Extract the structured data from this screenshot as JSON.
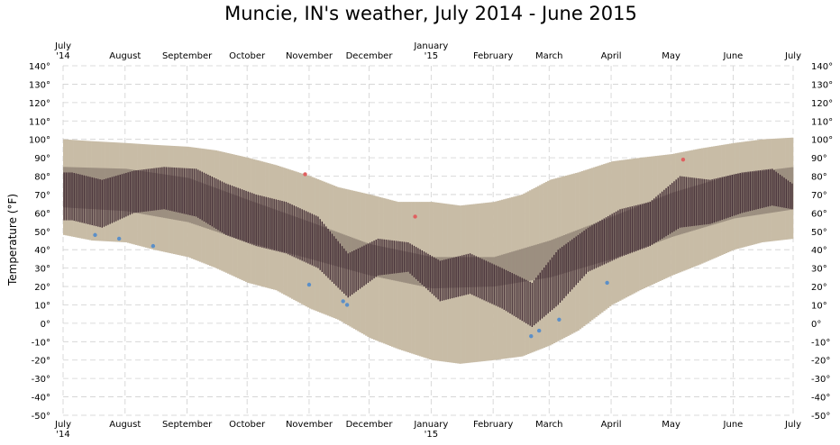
{
  "chart_data": {
    "type": "bar",
    "title": "Muncie, IN's weather, July 2014 - June 2015",
    "ylabel": "Temperature (°F)",
    "ylim": [
      -50,
      140
    ],
    "yticks": [
      -50,
      -40,
      -30,
      -20,
      -10,
      0,
      10,
      20,
      30,
      40,
      50,
      60,
      70,
      80,
      90,
      100,
      110,
      120,
      130,
      140
    ],
    "ytick_suffix": "°",
    "grid": true,
    "x_start": "2014-07-01",
    "x_end": "2015-07-01",
    "month_ticks": [
      {
        "date": "2014-07-01",
        "label": "July",
        "sublabel": "'14"
      },
      {
        "date": "2014-08-01",
        "label": "August",
        "sublabel": ""
      },
      {
        "date": "2014-09-01",
        "label": "September",
        "sublabel": ""
      },
      {
        "date": "2014-10-01",
        "label": "October",
        "sublabel": ""
      },
      {
        "date": "2014-11-01",
        "label": "November",
        "sublabel": ""
      },
      {
        "date": "2014-12-01",
        "label": "December",
        "sublabel": ""
      },
      {
        "date": "2015-01-01",
        "label": "January",
        "sublabel": "'15"
      },
      {
        "date": "2015-02-01",
        "label": "February",
        "sublabel": ""
      },
      {
        "date": "2015-03-01",
        "label": "March",
        "sublabel": ""
      },
      {
        "date": "2015-04-01",
        "label": "April",
        "sublabel": ""
      },
      {
        "date": "2015-05-01",
        "label": "May",
        "sublabel": ""
      },
      {
        "date": "2015-06-01",
        "label": "June",
        "sublabel": ""
      },
      {
        "date": "2015-07-01",
        "label": "July",
        "sublabel": ""
      }
    ],
    "series": [
      {
        "role": "record",
        "color": "#c8bca6",
        "points": [
          {
            "date": "2014-07-01",
            "low": 48,
            "high": 100
          },
          {
            "date": "2014-07-15",
            "low": 45,
            "high": 99
          },
          {
            "date": "2014-08-01",
            "low": 44,
            "high": 98
          },
          {
            "date": "2014-08-15",
            "low": 40,
            "high": 97
          },
          {
            "date": "2014-09-01",
            "low": 36,
            "high": 96
          },
          {
            "date": "2014-09-15",
            "low": 30,
            "high": 94
          },
          {
            "date": "2014-10-01",
            "low": 22,
            "high": 90
          },
          {
            "date": "2014-10-15",
            "low": 18,
            "high": 86
          },
          {
            "date": "2014-11-01",
            "low": 8,
            "high": 80
          },
          {
            "date": "2014-11-15",
            "low": 2,
            "high": 74
          },
          {
            "date": "2014-12-01",
            "low": -8,
            "high": 70
          },
          {
            "date": "2014-12-15",
            "low": -14,
            "high": 66
          },
          {
            "date": "2015-01-01",
            "low": -20,
            "high": 66
          },
          {
            "date": "2015-01-15",
            "low": -22,
            "high": 64
          },
          {
            "date": "2015-02-01",
            "low": -20,
            "high": 66
          },
          {
            "date": "2015-02-15",
            "low": -18,
            "high": 70
          },
          {
            "date": "2015-03-01",
            "low": -12,
            "high": 78
          },
          {
            "date": "2015-03-15",
            "low": -4,
            "high": 82
          },
          {
            "date": "2015-04-01",
            "low": 10,
            "high": 88
          },
          {
            "date": "2015-04-15",
            "low": 18,
            "high": 90
          },
          {
            "date": "2015-05-01",
            "low": 26,
            "high": 92
          },
          {
            "date": "2015-05-15",
            "low": 32,
            "high": 95
          },
          {
            "date": "2015-06-01",
            "low": 40,
            "high": 98
          },
          {
            "date": "2015-06-15",
            "low": 44,
            "high": 100
          },
          {
            "date": "2015-07-01",
            "low": 46,
            "high": 101
          }
        ]
      },
      {
        "role": "normal",
        "color": "#9c8f80",
        "points": [
          {
            "date": "2014-07-01",
            "low": 63,
            "high": 85
          },
          {
            "date": "2014-08-01",
            "low": 61,
            "high": 84
          },
          {
            "date": "2014-09-01",
            "low": 55,
            "high": 79
          },
          {
            "date": "2014-10-01",
            "low": 44,
            "high": 67
          },
          {
            "date": "2014-11-01",
            "low": 35,
            "high": 55
          },
          {
            "date": "2014-12-01",
            "low": 26,
            "high": 43
          },
          {
            "date": "2015-01-01",
            "low": 19,
            "high": 36
          },
          {
            "date": "2015-02-01",
            "low": 20,
            "high": 36
          },
          {
            "date": "2015-03-01",
            "low": 25,
            "high": 45
          },
          {
            "date": "2015-04-01",
            "low": 35,
            "high": 58
          },
          {
            "date": "2015-05-01",
            "low": 47,
            "high": 71
          },
          {
            "date": "2015-06-01",
            "low": 57,
            "high": 81
          },
          {
            "date": "2015-07-01",
            "low": 62,
            "high": 85
          }
        ]
      },
      {
        "role": "actual",
        "color": "#3d2630",
        "points": [
          {
            "date": "2014-07-05",
            "low": 56,
            "high": 82
          },
          {
            "date": "2014-07-20",
            "low": 52,
            "high": 78
          },
          {
            "date": "2014-08-05",
            "low": 60,
            "high": 83
          },
          {
            "date": "2014-08-20",
            "low": 62,
            "high": 85
          },
          {
            "date": "2014-09-05",
            "low": 58,
            "high": 84
          },
          {
            "date": "2014-09-20",
            "low": 48,
            "high": 76
          },
          {
            "date": "2014-10-05",
            "low": 42,
            "high": 70
          },
          {
            "date": "2014-10-20",
            "low": 38,
            "high": 66
          },
          {
            "date": "2014-11-05",
            "low": 30,
            "high": 58
          },
          {
            "date": "2014-11-20",
            "low": 14,
            "high": 38
          },
          {
            "date": "2014-12-05",
            "low": 26,
            "high": 46
          },
          {
            "date": "2014-12-20",
            "low": 28,
            "high": 44
          },
          {
            "date": "2015-01-05",
            "low": 12,
            "high": 34
          },
          {
            "date": "2015-01-20",
            "low": 16,
            "high": 38
          },
          {
            "date": "2015-02-05",
            "low": 8,
            "high": 30
          },
          {
            "date": "2015-02-20",
            "low": -2,
            "high": 22
          },
          {
            "date": "2015-03-05",
            "low": 10,
            "high": 40
          },
          {
            "date": "2015-03-20",
            "low": 28,
            "high": 52
          },
          {
            "date": "2015-04-05",
            "low": 36,
            "high": 62
          },
          {
            "date": "2015-04-20",
            "low": 42,
            "high": 66
          },
          {
            "date": "2015-05-05",
            "low": 52,
            "high": 80
          },
          {
            "date": "2015-05-20",
            "low": 54,
            "high": 78
          },
          {
            "date": "2015-06-05",
            "low": 60,
            "high": 82
          },
          {
            "date": "2015-06-20",
            "low": 64,
            "high": 84
          },
          {
            "date": "2015-06-30",
            "low": 62,
            "high": 76
          }
        ]
      }
    ],
    "record_highs": {
      "color": "#e06060",
      "points": [
        {
          "date": "2014-10-30",
          "value": 81
        },
        {
          "date": "2014-12-24",
          "value": 58
        },
        {
          "date": "2015-05-07",
          "value": 89
        }
      ]
    },
    "record_lows": {
      "color": "#5b8fc8",
      "points": [
        {
          "date": "2014-07-17",
          "value": 48
        },
        {
          "date": "2014-07-29",
          "value": 46
        },
        {
          "date": "2014-08-15",
          "value": 42
        },
        {
          "date": "2014-11-01",
          "value": 21
        },
        {
          "date": "2014-11-18",
          "value": 12
        },
        {
          "date": "2014-11-20",
          "value": 10
        },
        {
          "date": "2015-02-20",
          "value": -7
        },
        {
          "date": "2015-02-24",
          "value": -4
        },
        {
          "date": "2015-03-06",
          "value": 2
        },
        {
          "date": "2015-03-30",
          "value": 22
        }
      ]
    }
  }
}
